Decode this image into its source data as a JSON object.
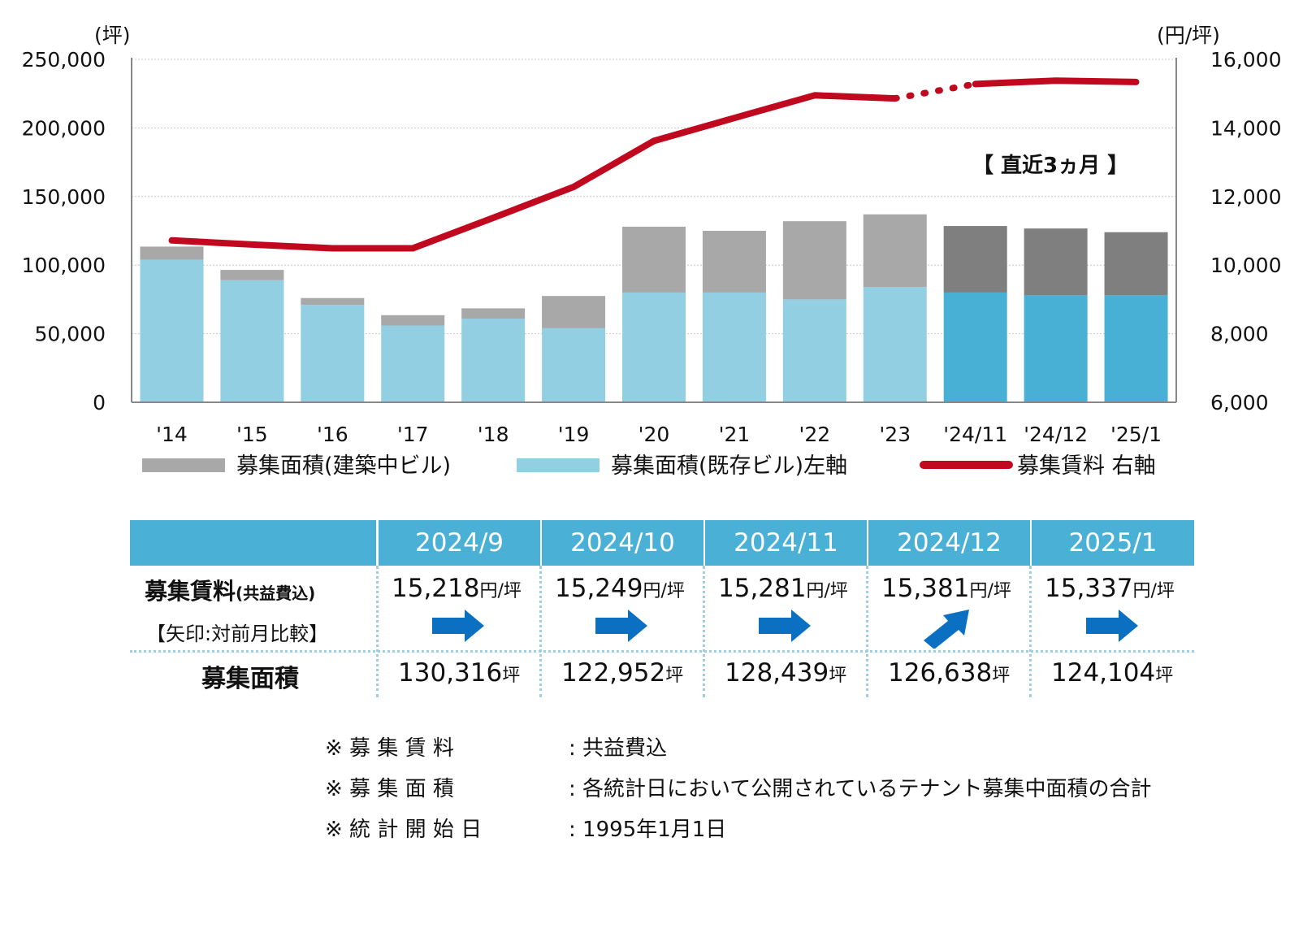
{
  "chart_data": {
    "type": "bar",
    "categories": [
      "'14",
      "'15",
      "'16",
      "'17",
      "'18",
      "'19",
      "'20",
      "'21",
      "'22",
      "'23",
      "'24/11",
      "'24/12",
      "'25/1"
    ],
    "series": [
      {
        "name": "募集面積(既存ビル)左軸",
        "axis": "left",
        "values": [
          104000,
          89000,
          71000,
          56000,
          61000,
          54000,
          80000,
          80000,
          75000,
          84000,
          80000,
          78000,
          78000
        ]
      },
      {
        "name": "募集面積(建築中ビル)",
        "axis": "left",
        "values": [
          9500,
          7500,
          5000,
          7500,
          7500,
          23500,
          48000,
          45000,
          57000,
          53000,
          48500,
          48700,
          46000
        ]
      },
      {
        "name": "募集賃料 右軸",
        "axis": "right",
        "type": "line",
        "values": [
          10720,
          10600,
          10490,
          10490,
          11380,
          12280,
          13620,
          14290,
          14950,
          14860,
          15280,
          15380,
          15340
        ]
      }
    ],
    "y_left": {
      "unit": "(坪)",
      "ylim": [
        0,
        250000
      ],
      "ticks": [
        "0",
        "50,000",
        "100,000",
        "150,000",
        "200,000",
        "250,000"
      ]
    },
    "y_right": {
      "unit": "(円/坪)",
      "ylim": [
        6000,
        16000
      ],
      "ticks": [
        "6,000",
        "8,000",
        "10,000",
        "12,000",
        "14,000",
        "16,000"
      ]
    },
    "annotation": "【 直近3ヵ月 】",
    "grid": true,
    "legend_position": "bottom",
    "colors": {
      "existing": "#93cfe3",
      "existing_recent": "#49b0d5",
      "construction": "#a8a8a8",
      "construction_recent": "#7f7f7f",
      "rent_line": "#c0091f"
    }
  },
  "table": {
    "months": [
      "2024/9",
      "2024/10",
      "2024/11",
      "2024/12",
      "2025/1"
    ],
    "rent_label": "募集賃料",
    "rent_label_suffix": "(共益費込)",
    "arrow_note": "【矢印:対前月比較】",
    "rents": [
      "15,218",
      "15,249",
      "15,281",
      "15,381",
      "15,337"
    ],
    "rent_unit": "円/坪",
    "arrows": [
      "right",
      "right",
      "right",
      "up-right",
      "right"
    ],
    "area_label": "募集面積",
    "areas": [
      "130,316",
      "122,952",
      "128,439",
      "126,638",
      "124,104"
    ],
    "area_unit": "坪",
    "arrow_color": "#0b70c1"
  },
  "notes": [
    {
      "key": "※ 募 集 賃 料",
      "value": ": 共益費込"
    },
    {
      "key": "※ 募 集 面 積",
      "value": ": 各統計日において公開されているテナント募集中面積の合計"
    },
    {
      "key": "※ 統 計 開 始 日",
      "value": ": 1995年1月1日"
    }
  ]
}
